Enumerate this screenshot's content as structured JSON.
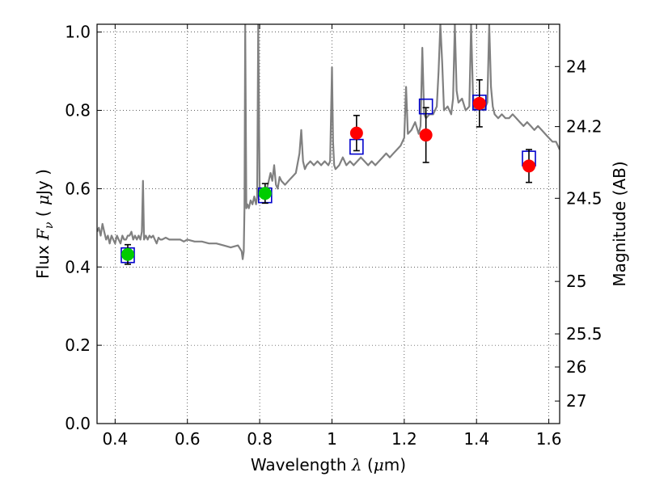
{
  "chart_data": {
    "type": "scatter",
    "title": "",
    "xlabel_prefix": "Wavelength",
    "xlabel_symbol": "λ",
    "xlabel_units_open": " (",
    "xlabel_units_mu": "μ",
    "xlabel_units_close": "m)",
    "ylabel_prefix": "Flux",
    "ylabel_symbol_F": "F",
    "ylabel_symbol_nu": "ν",
    "ylabel_units_open": " ( ",
    "ylabel_units_mu": "μ",
    "ylabel_units_close": "Jy )",
    "y2label": "Magnitude (AB)",
    "xlim": [
      0.35,
      1.63
    ],
    "ylim": [
      0.0,
      1.02
    ],
    "grid": true,
    "x_ticks": [
      0.4,
      0.6,
      0.8,
      1.0,
      1.2,
      1.4,
      1.6
    ],
    "x_tick_labels": [
      "0.4",
      "0.6",
      "0.8",
      "1",
      "1.2",
      "1.4",
      "1.6"
    ],
    "y_ticks": [
      0.0,
      0.2,
      0.4,
      0.6,
      0.8,
      1.0
    ],
    "y_tick_labels": [
      "0.0",
      "0.2",
      "0.4",
      "0.6",
      "0.8",
      "1.0"
    ],
    "mag_ticks": [
      24,
      24.2,
      24.5,
      25,
      25.5,
      26,
      27
    ],
    "mag_tick_labels": [
      "24",
      "24.2",
      "24.5",
      "25",
      "25.5",
      "26",
      "27"
    ],
    "series": [
      {
        "marker": "circle",
        "color": "#00cc00",
        "x": [
          0.435,
          0.815
        ],
        "y": [
          0.432,
          0.588
        ],
        "yerr": [
          0.025,
          0.025
        ]
      },
      {
        "marker": "circle",
        "color": "#ff0000",
        "x": [
          1.068,
          1.26,
          1.408,
          1.545
        ],
        "y": [
          0.742,
          0.737,
          0.818,
          0.658
        ],
        "yerr": [
          0.045,
          0.07,
          0.06,
          0.042
        ]
      },
      {
        "marker": "open-square",
        "color": "#0000cc",
        "x": [
          0.435,
          0.815,
          1.068,
          1.26,
          1.408,
          1.545
        ],
        "y": [
          0.43,
          0.583,
          0.707,
          0.81,
          0.82,
          0.677
        ]
      }
    ],
    "spectrum": {
      "color": "#808080",
      "x": [
        0.35,
        0.355,
        0.36,
        0.365,
        0.37,
        0.375,
        0.38,
        0.385,
        0.39,
        0.395,
        0.4,
        0.405,
        0.41,
        0.415,
        0.42,
        0.425,
        0.43,
        0.435,
        0.44,
        0.445,
        0.45,
        0.455,
        0.46,
        0.465,
        0.47,
        0.474,
        0.477,
        0.48,
        0.485,
        0.49,
        0.495,
        0.5,
        0.505,
        0.51,
        0.515,
        0.52,
        0.525,
        0.53,
        0.54,
        0.55,
        0.56,
        0.57,
        0.58,
        0.59,
        0.6,
        0.62,
        0.64,
        0.66,
        0.68,
        0.7,
        0.72,
        0.74,
        0.75,
        0.753,
        0.756,
        0.758,
        0.76,
        0.763,
        0.766,
        0.77,
        0.775,
        0.78,
        0.785,
        0.79,
        0.793,
        0.796,
        0.8,
        0.805,
        0.81,
        0.815,
        0.82,
        0.825,
        0.83,
        0.835,
        0.84,
        0.845,
        0.85,
        0.855,
        0.86,
        0.87,
        0.88,
        0.89,
        0.9,
        0.91,
        0.915,
        0.92,
        0.925,
        0.93,
        0.94,
        0.95,
        0.96,
        0.97,
        0.98,
        0.99,
        0.995,
        1.0,
        1.003,
        1.006,
        1.01,
        1.02,
        1.03,
        1.04,
        1.05,
        1.06,
        1.07,
        1.08,
        1.09,
        1.1,
        1.11,
        1.12,
        1.13,
        1.14,
        1.15,
        1.16,
        1.17,
        1.18,
        1.19,
        1.195,
        1.2,
        1.205,
        1.21,
        1.22,
        1.23,
        1.24,
        1.245,
        1.25,
        1.255,
        1.26,
        1.27,
        1.28,
        1.29,
        1.295,
        1.3,
        1.305,
        1.31,
        1.32,
        1.33,
        1.335,
        1.34,
        1.345,
        1.35,
        1.36,
        1.37,
        1.38,
        1.385,
        1.39,
        1.395,
        1.4,
        1.41,
        1.42,
        1.43,
        1.435,
        1.44,
        1.445,
        1.45,
        1.46,
        1.47,
        1.48,
        1.49,
        1.5,
        1.51,
        1.52,
        1.53,
        1.54,
        1.55,
        1.56,
        1.57,
        1.58,
        1.59,
        1.6,
        1.61,
        1.62,
        1.63
      ],
      "y": [
        0.49,
        0.5,
        0.48,
        0.51,
        0.49,
        0.47,
        0.48,
        0.46,
        0.48,
        0.47,
        0.46,
        0.48,
        0.47,
        0.46,
        0.48,
        0.47,
        0.47,
        0.48,
        0.48,
        0.49,
        0.47,
        0.48,
        0.47,
        0.48,
        0.47,
        0.49,
        0.62,
        0.47,
        0.48,
        0.47,
        0.48,
        0.475,
        0.48,
        0.47,
        0.46,
        0.475,
        0.47,
        0.47,
        0.475,
        0.47,
        0.47,
        0.47,
        0.47,
        0.465,
        0.47,
        0.465,
        0.465,
        0.46,
        0.46,
        0.455,
        0.45,
        0.455,
        0.44,
        0.42,
        0.44,
        0.55,
        1.02,
        0.55,
        0.56,
        0.55,
        0.57,
        0.56,
        0.58,
        0.56,
        0.58,
        1.02,
        0.59,
        0.58,
        0.59,
        0.59,
        0.6,
        0.62,
        0.64,
        0.62,
        0.66,
        0.61,
        0.6,
        0.63,
        0.62,
        0.61,
        0.62,
        0.63,
        0.64,
        0.69,
        0.75,
        0.67,
        0.65,
        0.66,
        0.67,
        0.66,
        0.67,
        0.66,
        0.67,
        0.66,
        0.67,
        0.91,
        0.72,
        0.66,
        0.65,
        0.66,
        0.68,
        0.66,
        0.67,
        0.66,
        0.67,
        0.68,
        0.67,
        0.66,
        0.67,
        0.66,
        0.67,
        0.68,
        0.69,
        0.68,
        0.69,
        0.7,
        0.71,
        0.72,
        0.73,
        0.86,
        0.74,
        0.75,
        0.77,
        0.74,
        0.76,
        0.96,
        0.79,
        0.78,
        0.79,
        0.79,
        0.81,
        0.9,
        1.02,
        0.92,
        0.8,
        0.81,
        0.79,
        0.83,
        1.02,
        0.85,
        0.82,
        0.83,
        0.8,
        0.81,
        1.02,
        0.84,
        0.8,
        0.81,
        0.81,
        0.8,
        0.82,
        1.02,
        0.86,
        0.81,
        0.79,
        0.78,
        0.79,
        0.78,
        0.78,
        0.79,
        0.78,
        0.77,
        0.76,
        0.77,
        0.76,
        0.75,
        0.76,
        0.75,
        0.74,
        0.73,
        0.72,
        0.72,
        0.7
      ]
    }
  }
}
